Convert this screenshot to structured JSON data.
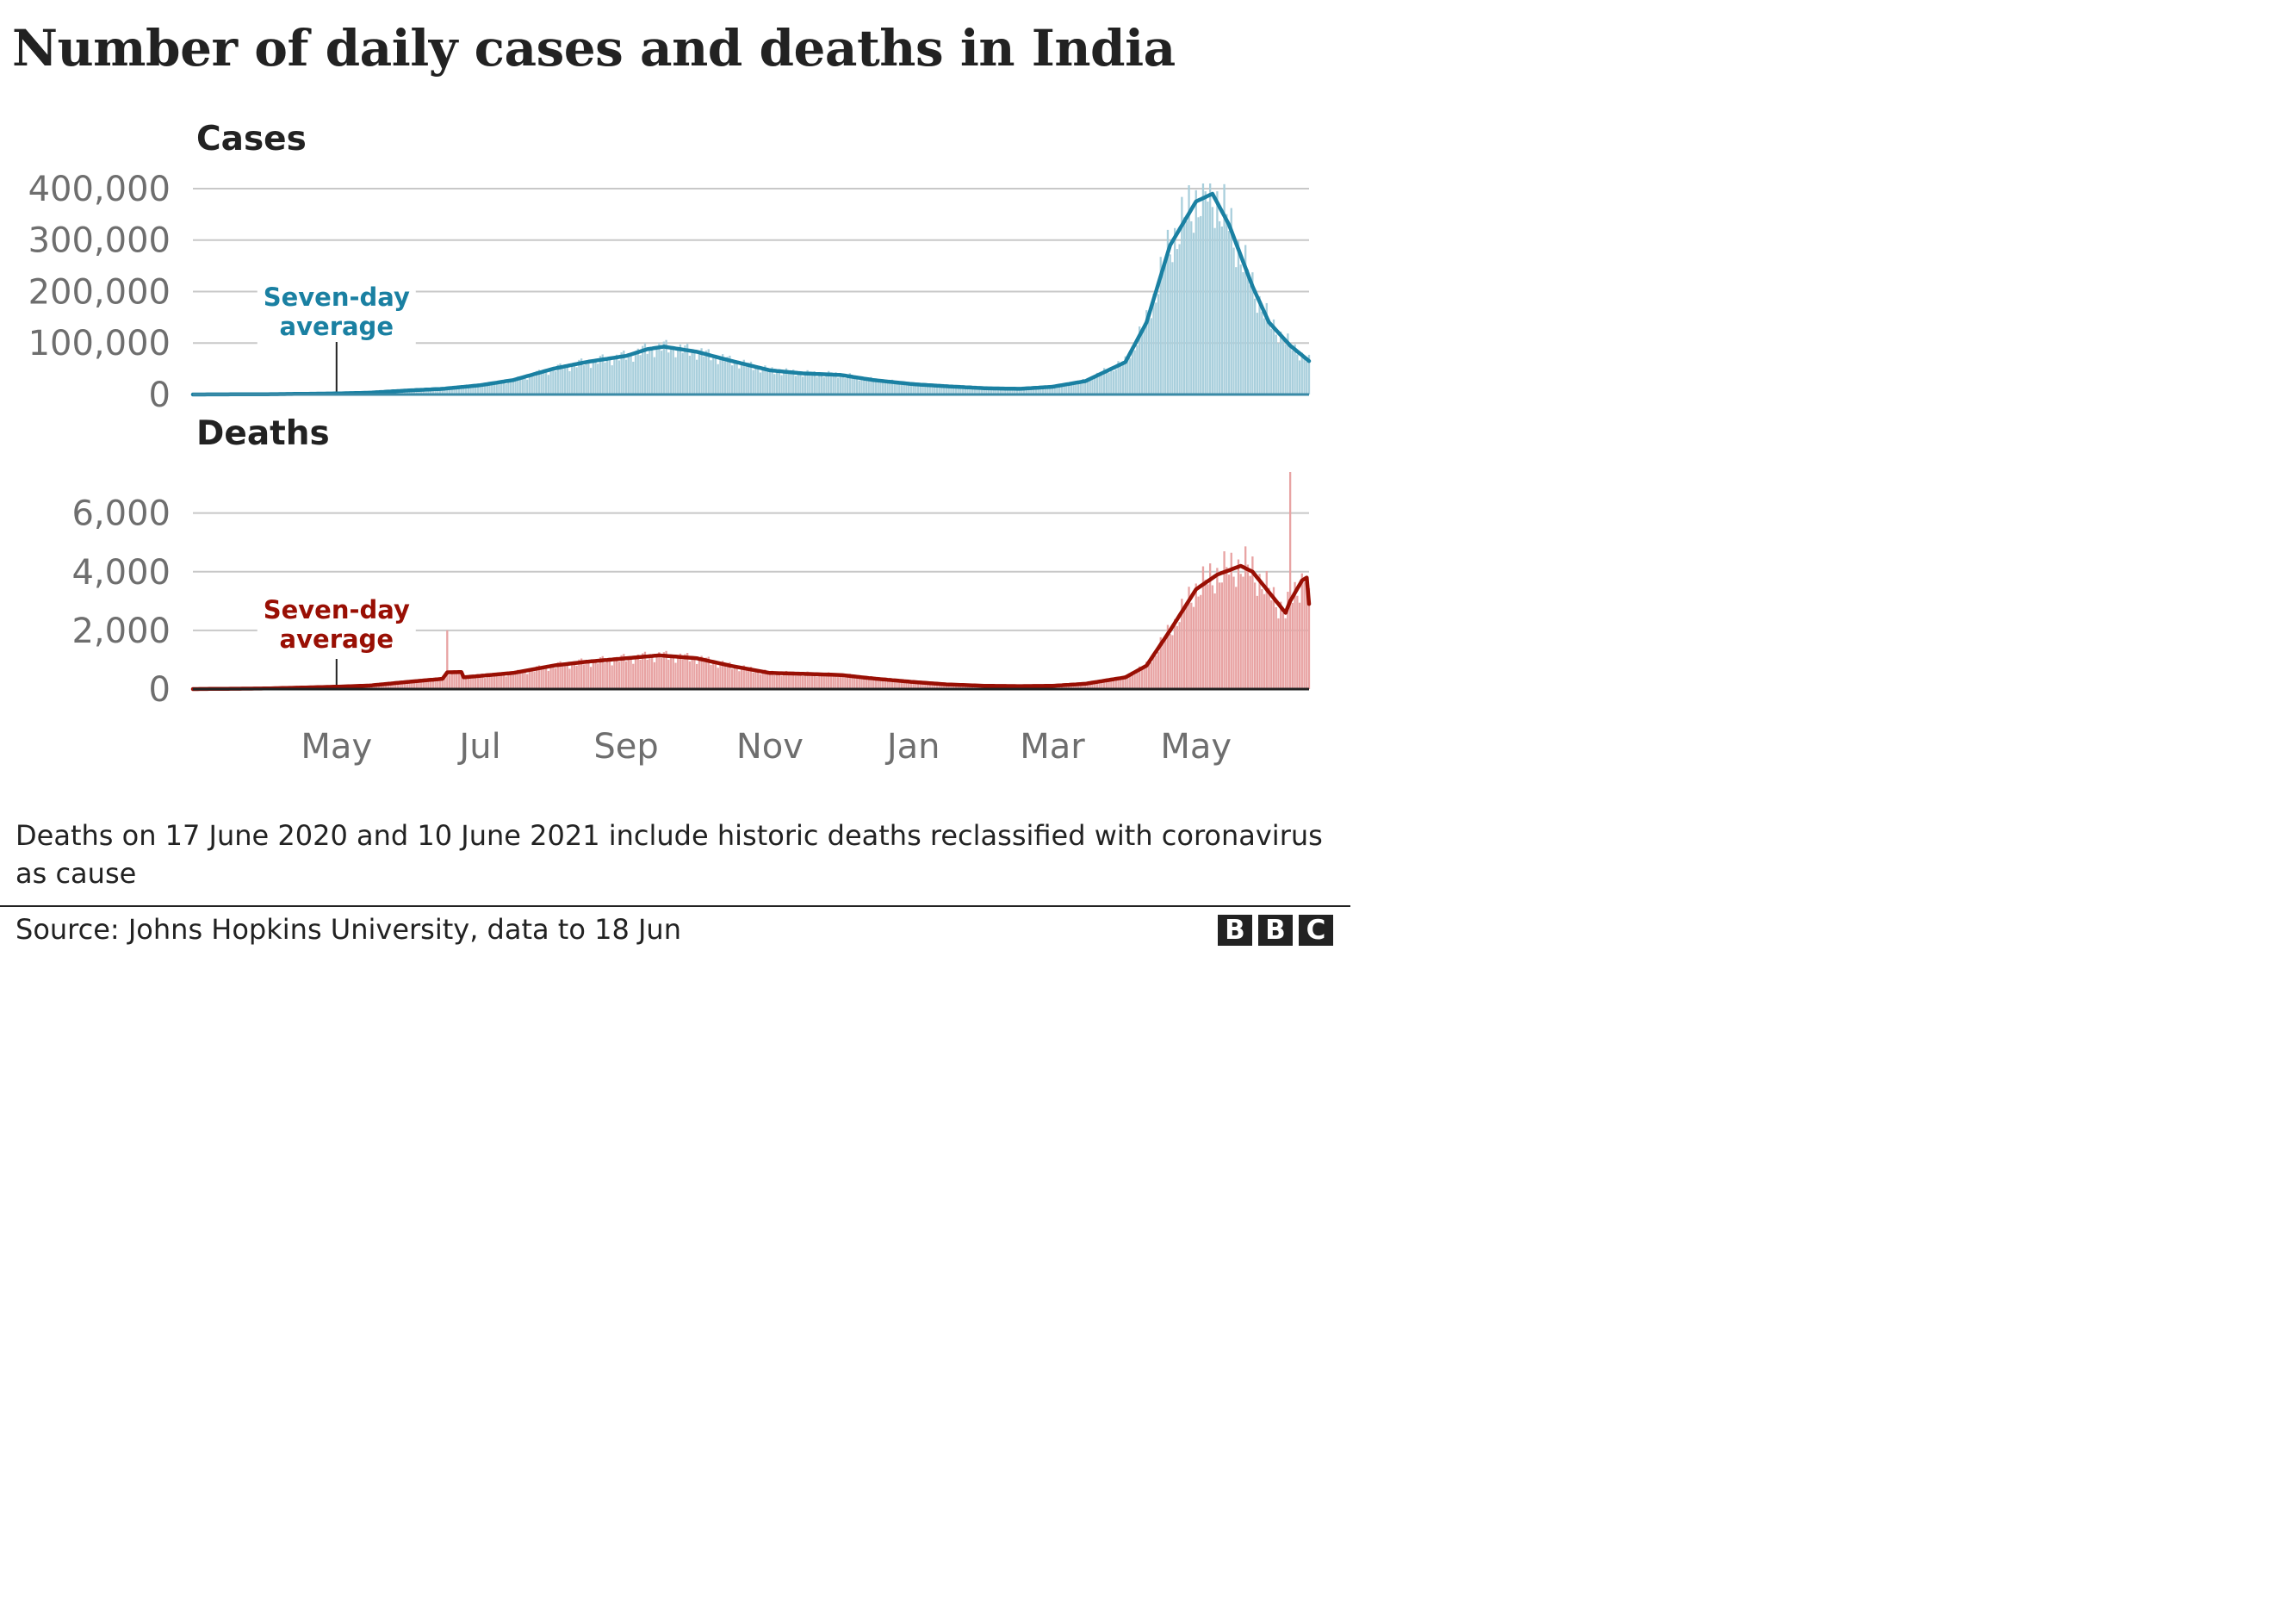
{
  "title": "Number of daily cases and deaths in India",
  "chart_data": [
    {
      "type": "bar",
      "title": "Cases",
      "series_bar": "Daily cases",
      "series_line_label": [
        "Seven-day",
        "average"
      ],
      "color_bar": "#a9cfdc",
      "color_line": "#1a80a2",
      "xlim": [
        "2020-03-01",
        "2021-06-18"
      ],
      "ylim": [
        0,
        410000
      ],
      "yticks": [
        0,
        100000,
        200000,
        300000,
        400000
      ],
      "ytick_labels": [
        "0",
        "100,000",
        "200,000",
        "300,000",
        "400,000"
      ],
      "annotation_date": "2020-05-01",
      "grid": true,
      "avg_points": [
        {
          "d": "2020-03-01",
          "v": 0
        },
        {
          "d": "2020-04-01",
          "v": 500
        },
        {
          "d": "2020-05-01",
          "v": 2000
        },
        {
          "d": "2020-05-15",
          "v": 3500
        },
        {
          "d": "2020-06-01",
          "v": 8000
        },
        {
          "d": "2020-06-15",
          "v": 11000
        },
        {
          "d": "2020-07-01",
          "v": 18000
        },
        {
          "d": "2020-07-15",
          "v": 28000
        },
        {
          "d": "2020-08-01",
          "v": 50000
        },
        {
          "d": "2020-08-15",
          "v": 63000
        },
        {
          "d": "2020-09-01",
          "v": 75000
        },
        {
          "d": "2020-09-10",
          "v": 88000
        },
        {
          "d": "2020-09-17",
          "v": 93000
        },
        {
          "d": "2020-10-01",
          "v": 83000
        },
        {
          "d": "2020-10-15",
          "v": 66000
        },
        {
          "d": "2020-11-01",
          "v": 47000
        },
        {
          "d": "2020-11-15",
          "v": 41000
        },
        {
          "d": "2020-12-01",
          "v": 38000
        },
        {
          "d": "2020-12-15",
          "v": 28000
        },
        {
          "d": "2021-01-01",
          "v": 20000
        },
        {
          "d": "2021-01-15",
          "v": 16000
        },
        {
          "d": "2021-02-01",
          "v": 12000
        },
        {
          "d": "2021-02-15",
          "v": 11000
        },
        {
          "d": "2021-03-01",
          "v": 15000
        },
        {
          "d": "2021-03-15",
          "v": 26000
        },
        {
          "d": "2021-04-01",
          "v": 63000
        },
        {
          "d": "2021-04-10",
          "v": 140000
        },
        {
          "d": "2021-04-20",
          "v": 290000
        },
        {
          "d": "2021-05-01",
          "v": 375000
        },
        {
          "d": "2021-05-08",
          "v": 390000
        },
        {
          "d": "2021-05-15",
          "v": 330000
        },
        {
          "d": "2021-05-25",
          "v": 210000
        },
        {
          "d": "2021-06-01",
          "v": 140000
        },
        {
          "d": "2021-06-10",
          "v": 95000
        },
        {
          "d": "2021-06-18",
          "v": 65000
        }
      ]
    },
    {
      "type": "bar",
      "title": "Deaths",
      "series_bar": "Daily deaths",
      "series_line_label": [
        "Seven-day",
        "average"
      ],
      "color_bar": "#e8a3a3",
      "color_line": "#990f04",
      "xlim": [
        "2020-03-01",
        "2021-06-18"
      ],
      "ylim": [
        0,
        7400
      ],
      "yticks": [
        0,
        2000,
        4000,
        6000
      ],
      "ytick_labels": [
        "0",
        "2,000",
        "4,000",
        "6,000"
      ],
      "annotation_date": "2020-05-01",
      "grid": true,
      "spikes": [
        {
          "d": "2020-06-17",
          "v": 2000
        },
        {
          "d": "2021-06-10",
          "v": 7400
        }
      ],
      "avg_points": [
        {
          "d": "2020-03-01",
          "v": 0
        },
        {
          "d": "2020-04-01",
          "v": 20
        },
        {
          "d": "2020-05-01",
          "v": 80
        },
        {
          "d": "2020-05-15",
          "v": 120
        },
        {
          "d": "2020-06-01",
          "v": 250
        },
        {
          "d": "2020-06-15",
          "v": 350
        },
        {
          "d": "2020-06-17",
          "v": 570
        },
        {
          "d": "2020-06-23",
          "v": 580
        },
        {
          "d": "2020-06-24",
          "v": 400
        },
        {
          "d": "2020-07-15",
          "v": 550
        },
        {
          "d": "2020-08-01",
          "v": 800
        },
        {
          "d": "2020-08-15",
          "v": 930
        },
        {
          "d": "2020-09-01",
          "v": 1050
        },
        {
          "d": "2020-09-15",
          "v": 1150
        },
        {
          "d": "2020-10-01",
          "v": 1050
        },
        {
          "d": "2020-10-15",
          "v": 800
        },
        {
          "d": "2020-11-01",
          "v": 550
        },
        {
          "d": "2020-11-15",
          "v": 520
        },
        {
          "d": "2020-12-01",
          "v": 480
        },
        {
          "d": "2020-12-15",
          "v": 360
        },
        {
          "d": "2021-01-01",
          "v": 240
        },
        {
          "d": "2021-01-15",
          "v": 160
        },
        {
          "d": "2021-02-01",
          "v": 110
        },
        {
          "d": "2021-02-15",
          "v": 100
        },
        {
          "d": "2021-03-01",
          "v": 110
        },
        {
          "d": "2021-03-15",
          "v": 180
        },
        {
          "d": "2021-04-01",
          "v": 400
        },
        {
          "d": "2021-04-10",
          "v": 800
        },
        {
          "d": "2021-04-20",
          "v": 2000
        },
        {
          "d": "2021-05-01",
          "v": 3400
        },
        {
          "d": "2021-05-10",
          "v": 3900
        },
        {
          "d": "2021-05-20",
          "v": 4200
        },
        {
          "d": "2021-05-25",
          "v": 4000
        },
        {
          "d": "2021-06-01",
          "v": 3300
        },
        {
          "d": "2021-06-08",
          "v": 2600
        },
        {
          "d": "2021-06-10",
          "v": 3000
        },
        {
          "d": "2021-06-15",
          "v": 3700
        },
        {
          "d": "2021-06-17",
          "v": 3800
        },
        {
          "d": "2021-06-18",
          "v": 2900
        }
      ]
    }
  ],
  "x_axis": {
    "ticks": [
      {
        "d": "2020-05-01",
        "label": "May"
      },
      {
        "d": "2020-07-01",
        "label": "Jul"
      },
      {
        "d": "2020-09-01",
        "label": "Sep"
      },
      {
        "d": "2020-11-01",
        "label": "Nov"
      },
      {
        "d": "2021-01-01",
        "label": "Jan"
      },
      {
        "d": "2021-03-01",
        "label": "Mar"
      },
      {
        "d": "2021-05-01",
        "label": "May"
      }
    ]
  },
  "note": "Deaths on 17 June 2020 and 10 June 2021 include historic deaths reclassified with coronavirus as cause",
  "source": "Source: Johns Hopkins University, data to 18 Jun",
  "logo": [
    "B",
    "B",
    "C"
  ]
}
